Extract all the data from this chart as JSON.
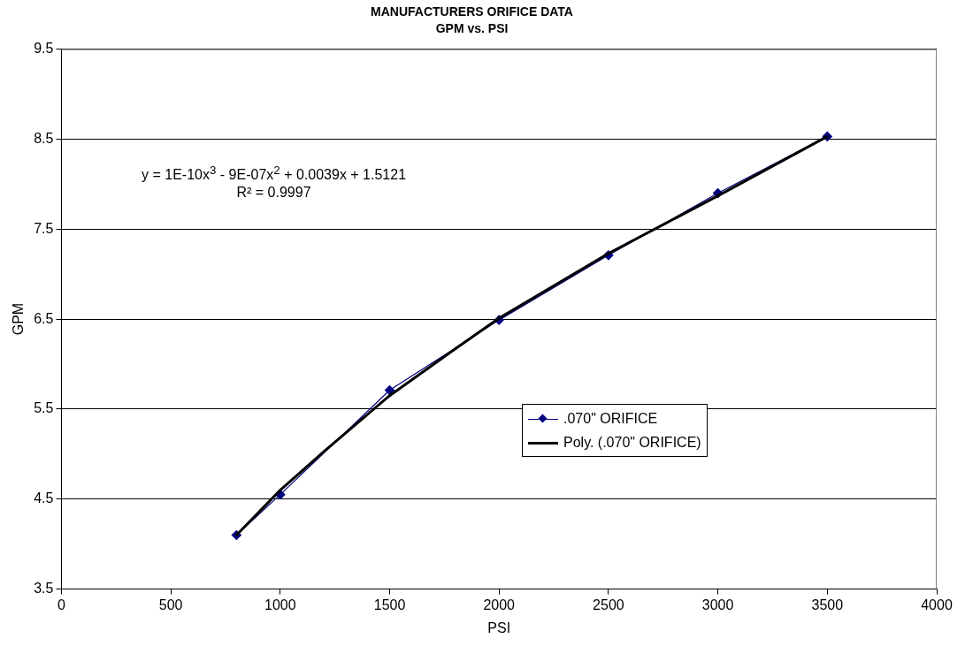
{
  "chart_data": {
    "type": "line",
    "title": "MANUFACTURERS ORIFICE DATA",
    "subtitle": "GPM vs. PSI",
    "xlabel": "PSI",
    "ylabel": "GPM",
    "xlim": [
      0,
      4000
    ],
    "xticks": [
      0,
      500,
      1000,
      1500,
      2000,
      2500,
      3000,
      3500,
      4000
    ],
    "ylim": [
      3.5,
      9.5
    ],
    "yticks": [
      3.5,
      4.5,
      5.5,
      6.5,
      7.5,
      8.5,
      9.5
    ],
    "grid": "y",
    "legend": "center",
    "annotations": [
      "y = 1E-10x$^{3}$ - 9E-07x$^{2}$ + 0.0039x + 1.5121",
      "R² = 0.9997"
    ],
    "series": [
      {
        "name": ".070\" ORIFICE",
        "color": "#000080",
        "marker": "diamond",
        "x": [
          800,
          1000,
          1500,
          2000,
          2500,
          3000,
          3500
        ],
        "values": [
          4.1,
          4.55,
          5.71,
          6.49,
          7.21,
          7.9,
          8.53
        ]
      },
      {
        "name": "Poly. (.070\" ORIFICE)",
        "color": "#000000",
        "marker": "none",
        "x": [
          800,
          1000,
          1200,
          1500,
          1800,
          2000,
          2500,
          3000,
          3500
        ],
        "values": [
          4.1,
          4.6,
          5.03,
          5.65,
          6.17,
          6.51,
          7.23,
          7.87,
          8.53
        ]
      }
    ]
  }
}
